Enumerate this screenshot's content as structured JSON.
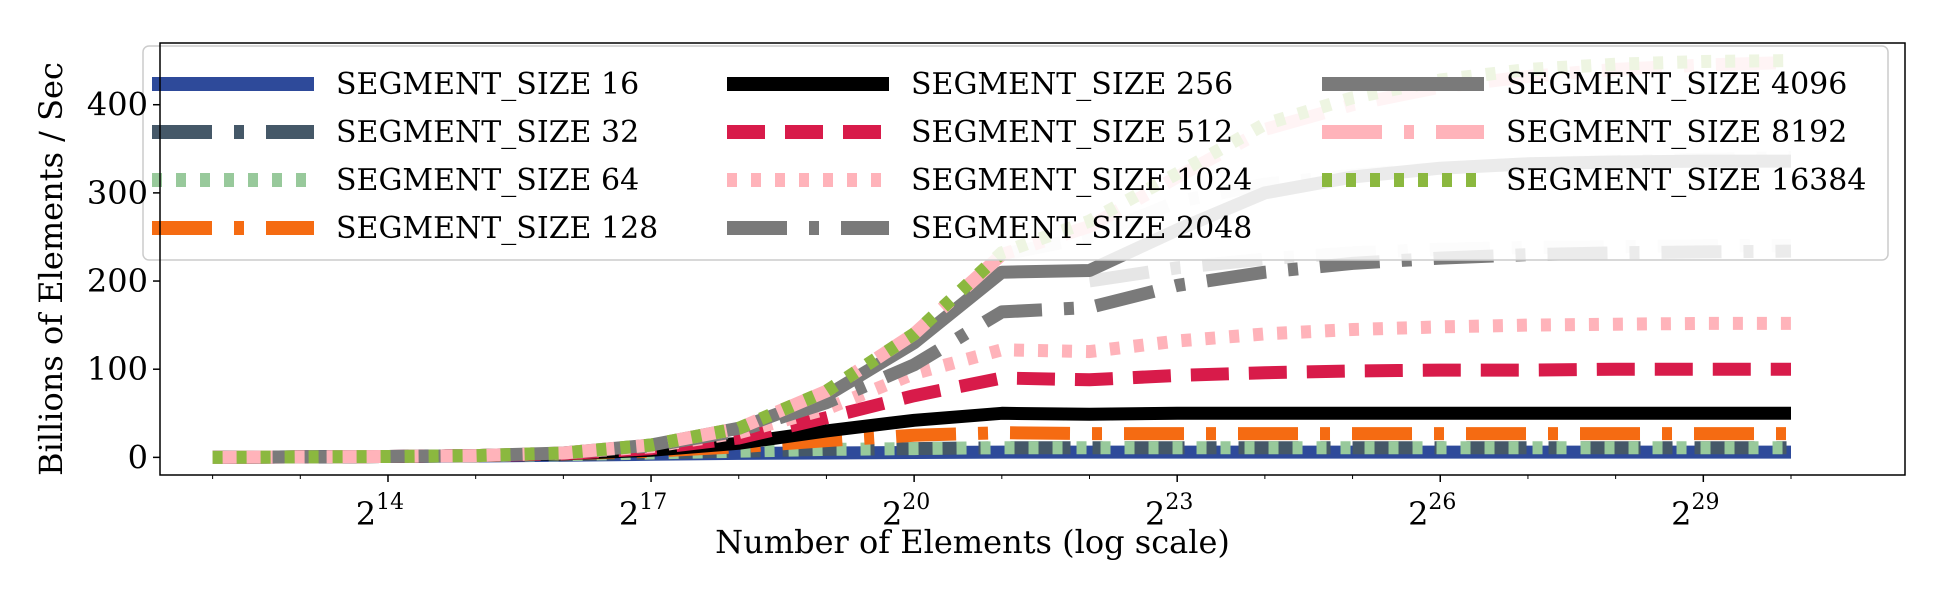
{
  "chart_data": {
    "type": "line",
    "title": "",
    "xlabel": "Number of Elements (log scale)",
    "ylabel": "Billions of Elements / Sec",
    "x_scale": "log2",
    "x_ticks": [
      {
        "exp": 14,
        "base": "2",
        "sup": "14"
      },
      {
        "exp": 17,
        "base": "2",
        "sup": "17"
      },
      {
        "exp": 20,
        "base": "2",
        "sup": "20"
      },
      {
        "exp": 23,
        "base": "2",
        "sup": "23"
      },
      {
        "exp": 26,
        "base": "2",
        "sup": "26"
      },
      {
        "exp": 29,
        "base": "2",
        "sup": "29"
      }
    ],
    "y_ticks": [
      {
        "value": 0,
        "label": "0"
      },
      {
        "value": 100,
        "label": "100"
      },
      {
        "value": 200,
        "label": "200"
      },
      {
        "value": 300,
        "label": "300"
      },
      {
        "value": 400,
        "label": "400"
      }
    ],
    "xlim_exp": [
      11.4,
      31.3
    ],
    "ylim": [
      -20,
      470
    ],
    "grid": false,
    "legend_placement": "top, 3 columns",
    "series": [
      {
        "name": "SEGMENT_SIZE 16",
        "color": "#2e4a9a",
        "dash": "solid",
        "x_exp": [
          12,
          13,
          14,
          15,
          16,
          17,
          18,
          19,
          20,
          21,
          22,
          23,
          24,
          25,
          26,
          27,
          28,
          29,
          30
        ],
        "values": [
          0,
          0.5,
          1,
          1.5,
          2.5,
          3.5,
          4.5,
          5,
          5.5,
          6,
          6,
          6,
          6,
          6,
          6,
          6,
          6,
          6,
          6
        ]
      },
      {
        "name": "SEGMENT_SIZE 32",
        "color": "#455868",
        "dash": "dashdot",
        "x_exp": [
          12,
          13,
          14,
          15,
          16,
          17,
          18,
          19,
          20,
          21,
          22,
          23,
          24,
          25,
          26,
          27,
          28,
          29,
          30
        ],
        "values": [
          0,
          0.5,
          1,
          2,
          3,
          5,
          7,
          9,
          10,
          11,
          11,
          11,
          11,
          11,
          11,
          11,
          11,
          11,
          11
        ]
      },
      {
        "name": "SEGMENT_SIZE 64",
        "color": "#98c99b",
        "dash": "dotted",
        "x_exp": [
          12,
          13,
          14,
          15,
          16,
          17,
          18,
          19,
          20,
          21,
          22,
          23,
          24,
          25,
          26,
          27,
          28,
          29,
          30
        ],
        "values": [
          0,
          0.5,
          1,
          2,
          3,
          5,
          7,
          9,
          10,
          11,
          11,
          11,
          11,
          11,
          11,
          11,
          11,
          11,
          11
        ]
      },
      {
        "name": "SEGMENT_SIZE 128",
        "color": "#f56b12",
        "dash": "dashdot",
        "x_exp": [
          12,
          13,
          14,
          15,
          16,
          17,
          18,
          19,
          20,
          21,
          22,
          23,
          24,
          25,
          26,
          27,
          28,
          29,
          30
        ],
        "values": [
          0,
          0.5,
          1,
          2,
          4,
          7,
          12,
          19,
          25,
          28,
          27,
          27,
          27,
          27,
          27,
          27,
          27,
          27,
          27
        ]
      },
      {
        "name": "SEGMENT_SIZE 256",
        "color": "#000000",
        "dash": "solid",
        "x_exp": [
          12,
          13,
          14,
          15,
          16,
          17,
          18,
          19,
          20,
          21,
          22,
          23,
          24,
          25,
          26,
          27,
          28,
          29,
          30
        ],
        "values": [
          0,
          0.5,
          1,
          2,
          4,
          8,
          16,
          30,
          42,
          50,
          49,
          50,
          50,
          50,
          50,
          50,
          50,
          50,
          50
        ]
      },
      {
        "name": "SEGMENT_SIZE 512",
        "color": "#d81b4a",
        "dash": "dashed",
        "x_exp": [
          12,
          13,
          14,
          15,
          16,
          17,
          18,
          19,
          20,
          21,
          22,
          23,
          24,
          25,
          26,
          27,
          28,
          29,
          30
        ],
        "values": [
          0,
          0.5,
          1,
          2,
          4,
          10,
          22,
          45,
          70,
          90,
          88,
          93,
          96,
          98,
          99,
          99,
          100,
          100,
          100
        ]
      },
      {
        "name": "SEGMENT_SIZE 1024",
        "color": "#ffb3ba",
        "dash": "dotted",
        "x_exp": [
          12,
          13,
          14,
          15,
          16,
          17,
          18,
          19,
          20,
          21,
          22,
          23,
          24,
          25,
          26,
          27,
          28,
          29,
          30
        ],
        "values": [
          0,
          0.5,
          1,
          2,
          5,
          12,
          28,
          55,
          95,
          122,
          120,
          132,
          140,
          145,
          148,
          150,
          151,
          152,
          152
        ]
      },
      {
        "name": "SEGMENT_SIZE 2048",
        "color": "#7a7a7a",
        "dash": "dashdot",
        "x_exp": [
          12,
          13,
          14,
          15,
          16,
          17,
          18,
          19,
          20,
          21,
          22,
          23,
          24,
          25,
          26,
          27,
          28,
          29,
          30
        ],
        "values": [
          0,
          0.5,
          1,
          2,
          5,
          13,
          30,
          62,
          105,
          165,
          170,
          195,
          210,
          220,
          226,
          230,
          232,
          233,
          234
        ]
      },
      {
        "name": "SEGMENT_SIZE 4096",
        "color": "#7a7a7a",
        "dash": "solid",
        "x_exp": [
          12,
          13,
          14,
          15,
          16,
          17,
          18,
          19,
          20,
          21,
          22,
          23,
          24,
          25,
          26,
          27,
          28,
          29,
          30
        ],
        "values": [
          0,
          0.5,
          1,
          2,
          5,
          14,
          33,
          70,
          130,
          210,
          212,
          258,
          300,
          318,
          328,
          333,
          335,
          336,
          336
        ]
      },
      {
        "name": "SEGMENT_SIZE 8192",
        "color": "#ffb3ba",
        "dash": "dashdot",
        "x_exp": [
          12,
          13,
          14,
          15,
          16,
          17,
          18,
          19,
          20,
          21,
          22,
          23,
          24,
          25,
          26,
          27,
          28,
          29,
          30
        ],
        "values": [
          0,
          0.5,
          1,
          2,
          5,
          14,
          33,
          75,
          140,
          230,
          262,
          318,
          372,
          400,
          420,
          432,
          440,
          445,
          448
        ]
      },
      {
        "name": "SEGMENT_SIZE 16384",
        "color": "#8bb83f",
        "dash": "dotted",
        "x_exp": [
          12,
          13,
          14,
          15,
          16,
          17,
          18,
          19,
          20,
          21,
          22,
          23,
          24,
          25,
          26,
          27,
          28,
          29,
          30
        ],
        "values": [
          0,
          0.5,
          1,
          2,
          5,
          14,
          33,
          75,
          140,
          232,
          268,
          322,
          378,
          408,
          428,
          440,
          446,
          449,
          450
        ]
      }
    ]
  },
  "extra_lines": [
    {
      "color": "#e6e6e6",
      "dash": "dashdot",
      "x_exp": [
        21,
        22,
        23,
        24,
        25,
        26,
        27,
        28,
        29,
        30
      ],
      "values": [
        230,
        250,
        290,
        310,
        320,
        328,
        333,
        336,
        338,
        340
      ]
    },
    {
      "color": "#e6e6e6",
      "dash": "dashdot",
      "x_exp": [
        22,
        23,
        24,
        25,
        26,
        27,
        28,
        29,
        30
      ],
      "values": [
        200,
        215,
        225,
        232,
        236,
        238,
        239,
        240,
        240
      ]
    }
  ]
}
